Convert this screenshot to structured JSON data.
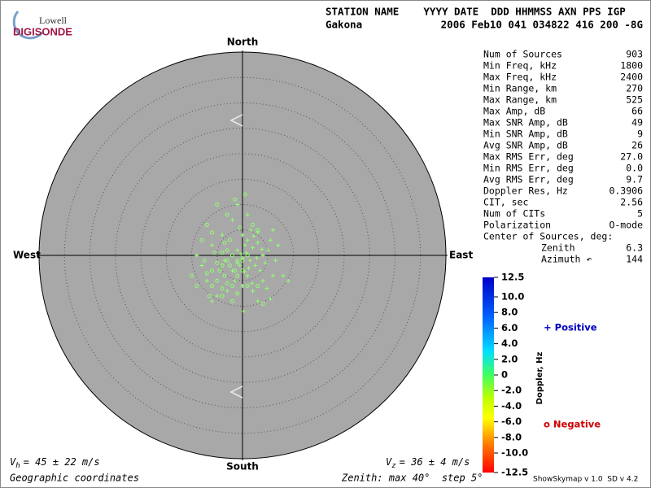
{
  "header": {
    "logo_top": "Lowell",
    "logo_bottom": "DIGISONDE",
    "line1": "STATION NAME    YYYY DATE  DDD HHMMSS AXN PPS IGP",
    "station": "Gakona",
    "line2": "2006 Feb10 041 034822 416 200 -8G"
  },
  "stats": {
    "rows": [
      [
        "Num of Sources",
        "903"
      ],
      [
        "Min Freq, kHz",
        "1800"
      ],
      [
        "Max Freq, kHz",
        "2400"
      ],
      [
        "Min Range, km",
        "270"
      ],
      [
        "Max Range, km",
        "525"
      ],
      [
        "Max Amp, dB",
        "66"
      ],
      [
        "Max SNR Amp, dB",
        "49"
      ],
      [
        "Min SNR Amp, dB",
        "9"
      ],
      [
        "Avg SNR Amp, dB",
        "26"
      ],
      [
        "Max RMS Err, deg",
        "27.0"
      ],
      [
        "Min RMS Err, deg",
        "0.0"
      ],
      [
        "Avg RMS Err, deg",
        "9.7"
      ],
      [
        "Doppler Res, Hz",
        "0.3906"
      ],
      [
        "CIT, sec",
        "2.56"
      ],
      [
        "Num of CITs",
        "5"
      ],
      [
        "Polarization",
        "O-mode"
      ]
    ],
    "center_heading": "Center of Sources, deg:",
    "center_rows": [
      [
        "Zenith",
        "6.3"
      ],
      [
        "Azimuth ↶",
        "144"
      ]
    ]
  },
  "chart_data": {
    "type": "skymap",
    "directions": {
      "north": "North",
      "south": "South",
      "west": "West",
      "east": "East"
    },
    "rlim": [
      0,
      40
    ],
    "rticks": [
      5,
      10,
      15,
      20,
      25,
      30,
      35
    ],
    "series": [
      {
        "name": "+ Positive",
        "marker": "plus",
        "color": "#90ff70",
        "x": [
          0.5,
          1,
          2,
          3,
          1.5,
          2.5,
          0,
          -1,
          -0.5,
          4,
          5,
          3.5,
          1,
          -2,
          0.8,
          2.2,
          3,
          1.6,
          4.5,
          6,
          5.5,
          -1.5,
          0,
          2,
          -3,
          4,
          6.5,
          7,
          -4,
          -6,
          -8,
          -7,
          -5,
          3,
          8,
          6,
          1,
          -2,
          0,
          -1,
          1.2,
          2.8,
          3.8,
          -0.3,
          0.4,
          1.9,
          4.8,
          -3.5,
          9,
          5.5,
          -1,
          -6,
          0.2,
          -9
        ],
        "y": [
          2,
          3,
          1.5,
          2.5,
          -1,
          -2,
          -0.5,
          1,
          -2,
          0,
          1,
          -3,
          -4,
          -3,
          0.5,
          3.8,
          4.5,
          5,
          -1.5,
          -4,
          3,
          -5,
          -6,
          -7,
          -7,
          -5,
          -1,
          2,
          4,
          2,
          -2,
          -5,
          -8,
          -9,
          -4,
          5,
          8,
          7,
          4,
          -1.5,
          -2.5,
          -0.5,
          1.2,
          0.3,
          -3.2,
          -5.5,
          -6.5,
          -1,
          -5,
          -8.5,
          10,
          -9,
          -11,
          0
        ]
      },
      {
        "name": "o Negative",
        "marker": "circle",
        "color": "#90ff70",
        "x": [
          -3,
          -4,
          -5,
          -4.5,
          -3.5,
          -6,
          -5,
          -2.5,
          -2,
          -1,
          0,
          -3,
          -4,
          -6,
          -4,
          -3,
          -7,
          -7.5,
          -5.5,
          -2,
          -1,
          0,
          1,
          -1.5,
          -4,
          -2,
          -6,
          -7,
          -3,
          -5,
          -1.5,
          -9,
          3,
          2,
          -0.5,
          1,
          3,
          -8,
          -10,
          -2.5,
          -3.5,
          4,
          -6.5,
          -1,
          0.5
        ],
        "y": [
          -1,
          -2,
          -1.5,
          -3,
          -4,
          -3,
          -5,
          -2,
          0,
          -1,
          -1,
          1,
          0.5,
          -6,
          -6.5,
          -5.5,
          -3.5,
          -1,
          0.5,
          -6,
          -4,
          -3,
          0,
          -3,
          -8,
          -9,
          4.5,
          6,
          8,
          10,
          11,
          -6,
          5,
          6,
          5.5,
          -6,
          -6,
          3,
          -4,
          3,
          2.5,
          -9.5,
          -8,
          -7.5,
          12
        ]
      }
    ],
    "colorbar": {
      "label": "Doppler, Hz",
      "lim": [
        12.5,
        -12.5
      ],
      "ticks": [
        12.5,
        {
          "value": 10,
          "label": "10.0"
        },
        {
          "value": 8,
          "label": "8.0"
        },
        {
          "value": 6,
          "label": "6.0"
        },
        {
          "value": 4,
          "label": "4.0"
        },
        {
          "value": 2,
          "label": "2.0"
        },
        0,
        {
          "value": -2,
          "label": "-2.0"
        },
        {
          "value": -4,
          "label": "-4.0"
        },
        {
          "value": -6,
          "label": "-6.0"
        },
        {
          "value": -8,
          "label": "-8.0"
        },
        {
          "value": -10,
          "label": "-10.0"
        },
        -12.5
      ]
    }
  },
  "footer": {
    "vh": {
      "symbol": "V",
      "subscript": "h",
      "text": "= 45 ± 22 m/s"
    },
    "vz": {
      "symbol": "V",
      "subscript": "z",
      "text": "= 36 ± 4 m/s"
    },
    "coordinates": "Geographic coordinates",
    "zenith": "Zenith: max 40°  step 5°",
    "version": "ShowSkymap v 1.0  SD v 4.2"
  }
}
